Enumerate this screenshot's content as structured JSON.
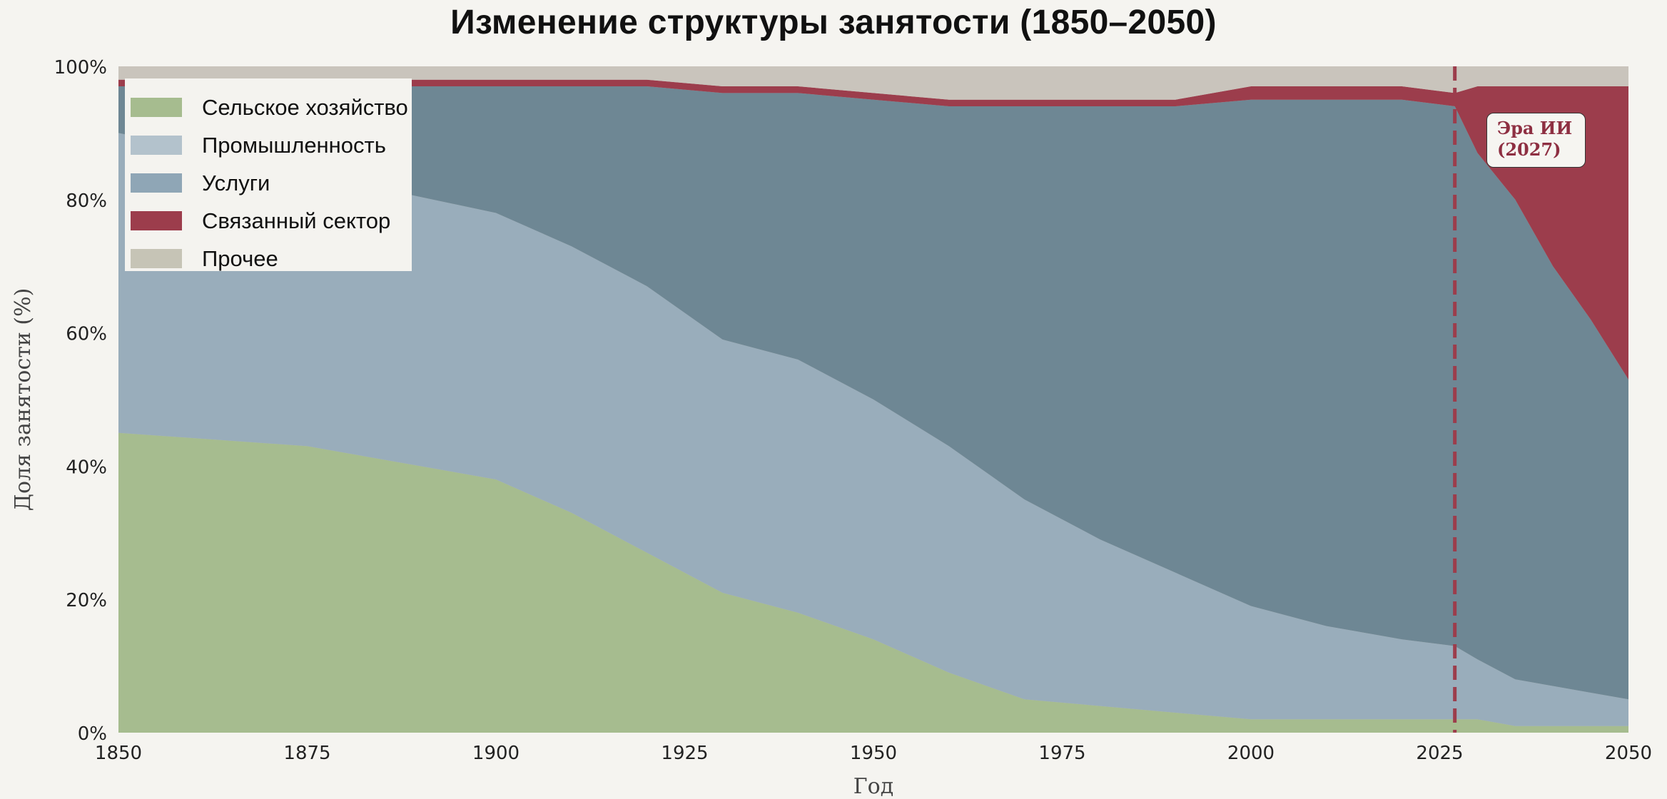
{
  "chart_data": {
    "type": "area",
    "stacked": true,
    "title": "Изменение структуры занятости (1850–2050)",
    "xlabel": "Год",
    "ylabel": "Доля занятости (%)",
    "xlim": [
      1850,
      2050
    ],
    "ylim": [
      0,
      100
    ],
    "x_ticks": [
      "1850",
      "1875",
      "1900",
      "1925",
      "1950",
      "1975",
      "2000",
      "2025",
      "2050"
    ],
    "y_ticks": [
      "0%",
      "20%",
      "40%",
      "60%",
      "80%",
      "100%"
    ],
    "grid": false,
    "legend_position": "upper left",
    "x": [
      1850,
      1875,
      1900,
      1910,
      1920,
      1930,
      1940,
      1950,
      1960,
      1970,
      1980,
      1990,
      2000,
      2010,
      2020,
      2027,
      2030,
      2035,
      2040,
      2045,
      2050
    ],
    "series": [
      {
        "name": "Сельское хозяйство",
        "color": "#a6bc8f",
        "values": [
          45,
          43,
          38,
          33,
          27,
          21,
          18,
          14,
          9,
          5,
          4,
          3,
          2,
          2,
          2,
          2,
          2,
          1,
          1,
          1,
          1
        ]
      },
      {
        "name": "Промышленность",
        "color": "#99adbb",
        "values": [
          45,
          41,
          40,
          40,
          40,
          38,
          38,
          36,
          34,
          30,
          25,
          21,
          17,
          14,
          12,
          11,
          9,
          7,
          6,
          5,
          4
        ]
      },
      {
        "name": "Услуги",
        "color": "#6e8794",
        "values": [
          7,
          13,
          19,
          24,
          30,
          37,
          40,
          45,
          51,
          59,
          65,
          70,
          76,
          79,
          81,
          81,
          76,
          72,
          63,
          56,
          48
        ]
      },
      {
        "name": "Связанный сектор",
        "color": "#9c3d4c",
        "values": [
          1,
          1,
          1,
          1,
          1,
          1,
          1,
          1,
          1,
          1,
          1,
          1,
          2,
          2,
          2,
          2,
          10,
          17,
          27,
          35,
          44
        ]
      },
      {
        "name": "Прочее",
        "color": "#c9c4bc",
        "values": [
          2,
          2,
          2,
          2,
          2,
          3,
          3,
          4,
          5,
          5,
          5,
          5,
          3,
          3,
          3,
          4,
          3,
          3,
          3,
          3,
          3
        ]
      }
    ],
    "annotations": [
      {
        "type": "vline",
        "x": 2027,
        "style": "dashed",
        "color": "#9c3d4c"
      },
      {
        "type": "text",
        "text": "Эра ИИ\n(2027)",
        "x": 2031,
        "y": 90,
        "color": "#8e2f42"
      }
    ]
  },
  "title": "Изменение структуры занятости (1850–2050)",
  "legend": [
    {
      "label": "Сельское хозяйство",
      "color": "#a6bc8f"
    },
    {
      "label": "Промышленность",
      "color": "#b3c2cc"
    },
    {
      "label": "Услуги",
      "color": "#8fa6b6"
    },
    {
      "label": "Связанный сектор",
      "color": "#9c3d4c"
    },
    {
      "label": "Прочее",
      "color": "#c6c4b6"
    }
  ],
  "annotation": {
    "line1": "Эра ИИ",
    "line2": "(2027)"
  },
  "axes": {
    "xlabel": "Год",
    "ylabel": "Доля занятости (%)"
  }
}
